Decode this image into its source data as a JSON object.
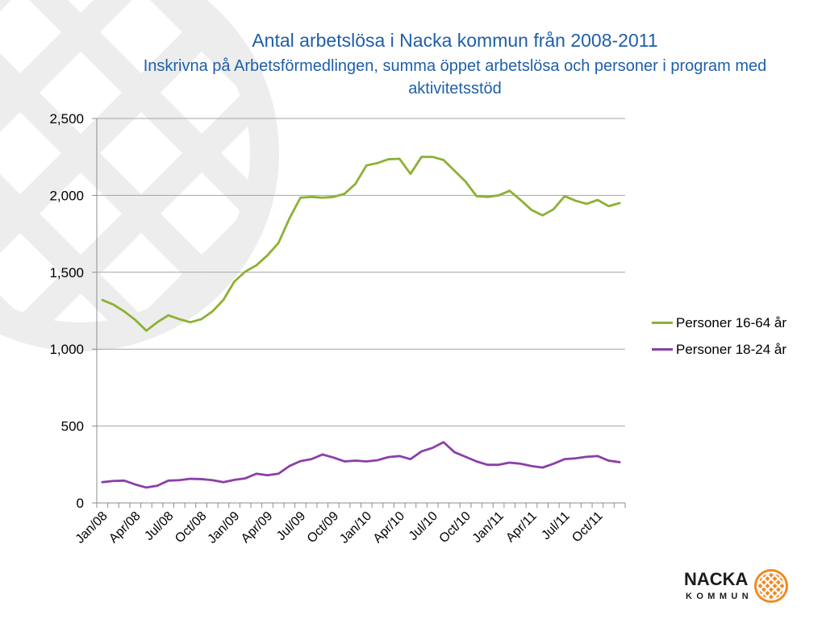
{
  "chart_data": {
    "type": "line",
    "title": "Antal arbetslösa i Nacka kommun från 2008-2011",
    "subtitle": "Inskrivna på Arbetsförmedlingen, summa öppet arbetslösa och personer i program med aktivitetsstöd",
    "xlabel": "",
    "ylabel": "",
    "categories": [
      "Jan/08",
      "",
      "",
      "Apr/08",
      "",
      "",
      "Jul/08",
      "",
      "",
      "Oct/08",
      "",
      "",
      "Jan/09",
      "",
      "",
      "Apr/09",
      "",
      "",
      "Jul/09",
      "",
      "",
      "Oct/09",
      "",
      "",
      "Jan/10",
      "",
      "",
      "Apr/10",
      "",
      "",
      "Jul/10",
      "",
      "",
      "Oct/10",
      "",
      "",
      "Jan/11",
      "",
      "",
      "Apr/11",
      "",
      "",
      "Jul/11",
      "",
      "",
      "Oct/11",
      "",
      ""
    ],
    "ylim": [
      0,
      2500
    ],
    "y_ticks": [
      0,
      500,
      1000,
      1500,
      2000,
      2500
    ],
    "y_tick_labels": [
      "0",
      "500",
      "1,000",
      "1,500",
      "2,000",
      "2,500"
    ],
    "grid": "horizontal",
    "legend": "right",
    "series": [
      {
        "name": "Personer 16-64 år",
        "color": "#8DB133",
        "values": [
          1320,
          1290,
          1245,
          1190,
          1120,
          1175,
          1220,
          1195,
          1175,
          1195,
          1245,
          1320,
          1440,
          1505,
          1545,
          1610,
          1690,
          1850,
          1985,
          1990,
          1985,
          1990,
          2010,
          2075,
          2195,
          2210,
          2235,
          2238,
          2140,
          2250,
          2250,
          2230,
          2160,
          2090,
          1995,
          1990,
          2000,
          2030,
          1970,
          1905,
          1870,
          1910,
          1995,
          1965,
          1945,
          1970,
          1930,
          1950
        ]
      },
      {
        "name": "Personer 18-24 år",
        "color": "#8B3FA7",
        "values": [
          135,
          143,
          145,
          120,
          100,
          112,
          145,
          148,
          157,
          155,
          148,
          135,
          150,
          160,
          190,
          180,
          190,
          240,
          272,
          285,
          315,
          295,
          270,
          275,
          270,
          278,
          298,
          305,
          285,
          335,
          358,
          395,
          330,
          300,
          270,
          248,
          248,
          262,
          255,
          240,
          230,
          255,
          285,
          290,
          300,
          305,
          275,
          265
        ]
      }
    ]
  },
  "logo": {
    "line1": "NACKA",
    "line2": "KOMMUN",
    "emblem_color": "#F08A24"
  },
  "colors": {
    "title": "#1F5FA8",
    "gridline": "#A6A6A6",
    "axis": "#8C8C8C",
    "watermark": "#EDEDED"
  }
}
